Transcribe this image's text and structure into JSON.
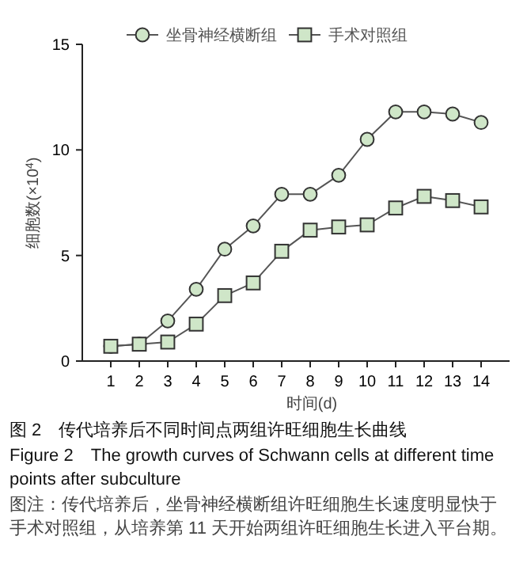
{
  "chart_data": {
    "type": "line",
    "xlabel": "时间(d)",
    "ylabel": "细胞数(×10$^{4}$)",
    "x": [
      1,
      2,
      3,
      4,
      5,
      6,
      7,
      8,
      9,
      10,
      11,
      12,
      13,
      14
    ],
    "xlim": [
      0,
      15
    ],
    "xticks": [
      1,
      2,
      3,
      4,
      5,
      6,
      7,
      8,
      9,
      10,
      11,
      12,
      13,
      14
    ],
    "ylim": [
      0,
      15
    ],
    "yticks": [
      0,
      5,
      10,
      15
    ],
    "grid": false,
    "legend": "top",
    "series": [
      {
        "name": "坐骨神经横断组",
        "color": "#cfe6c8",
        "marker": "circle",
        "values": [
          0.7,
          0.8,
          1.9,
          3.4,
          5.3,
          6.4,
          7.9,
          7.9,
          8.8,
          10.5,
          11.8,
          11.8,
          11.7,
          11.3
        ]
      },
      {
        "name": "手术对照组",
        "color": "#cfe6c8",
        "marker": "square",
        "values": [
          0.7,
          0.8,
          0.9,
          1.75,
          3.1,
          3.7,
          5.2,
          6.2,
          6.35,
          6.45,
          7.25,
          7.8,
          7.6,
          7.3
        ]
      }
    ],
    "annotations": [
      "图 2　传代培养后不同时间点两组许旺细胞生长曲线",
      "Figure 2　The growth curves of Schwann cells at different time points after subculture",
      "图注：传代培养后，坐骨神经横断组许旺细胞生长速度明显快于手术对照组，从培养第 11 天开始两组许旺细胞生长进入平台期。"
    ]
  }
}
